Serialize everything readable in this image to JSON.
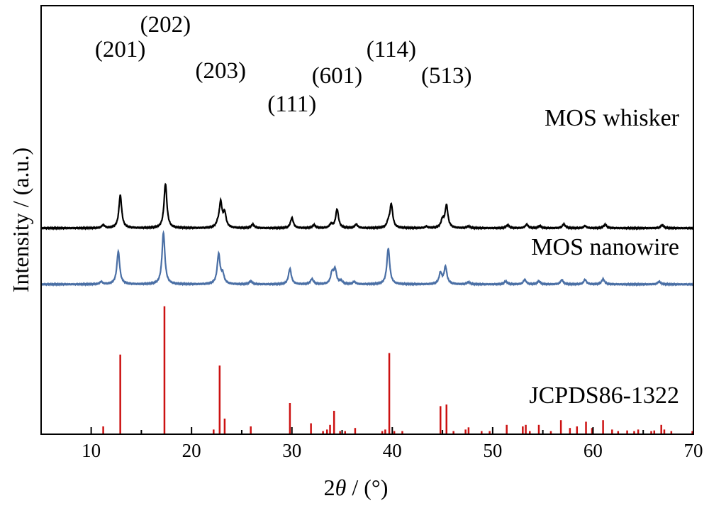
{
  "chart_data": {
    "type": "line",
    "xlabel": "2θ / (°)",
    "ylabel": "Intensity / (a.u.)",
    "xlim": [
      5,
      70
    ],
    "xticks": [
      10,
      20,
      30,
      40,
      50,
      60,
      70
    ],
    "grid": false,
    "legend": "none",
    "series": [
      {
        "name": "MOS whisker",
        "color": "#000000",
        "baseline": 6.6,
        "peaks": [
          [
            11.2,
            0.1
          ],
          [
            12.9,
            1.05
          ],
          [
            17.4,
            1.42
          ],
          [
            22.6,
            0.1
          ],
          [
            22.9,
            0.8
          ],
          [
            23.3,
            0.45
          ],
          [
            26.1,
            0.12
          ],
          [
            30.0,
            0.33
          ],
          [
            32.2,
            0.1
          ],
          [
            33.9,
            0.12
          ],
          [
            34.5,
            0.6
          ],
          [
            36.4,
            0.12
          ],
          [
            39.6,
            0.15
          ],
          [
            39.9,
            0.75
          ],
          [
            43.4,
            0.05
          ],
          [
            45.0,
            0.25
          ],
          [
            45.4,
            0.72
          ],
          [
            47.6,
            0.06
          ],
          [
            51.5,
            0.1
          ],
          [
            53.4,
            0.12
          ],
          [
            54.7,
            0.07
          ],
          [
            57.1,
            0.13
          ],
          [
            59.2,
            0.07
          ],
          [
            61.2,
            0.12
          ],
          [
            66.9,
            0.1
          ]
        ],
        "peak_labels": [
          {
            "text": "(201)",
            "x": 12.9
          },
          {
            "text": "(202)",
            "x": 17.4
          },
          {
            "text": "(203)",
            "x": 22.9
          },
          {
            "text": "(111)",
            "x": 30.0
          },
          {
            "text": "(601)",
            "x": 34.5
          },
          {
            "text": "(114)",
            "x": 39.9
          },
          {
            "text": "(513)",
            "x": 45.4
          }
        ]
      },
      {
        "name": "MOS nanowire",
        "color": "#4a6fa5",
        "baseline": 4.8,
        "peaks": [
          [
            11.0,
            0.08
          ],
          [
            12.7,
            1.05
          ],
          [
            17.2,
            1.65
          ],
          [
            22.7,
            0.95
          ],
          [
            23.1,
            0.3
          ],
          [
            25.9,
            0.1
          ],
          [
            29.8,
            0.5
          ],
          [
            32.0,
            0.17
          ],
          [
            34.0,
            0.35
          ],
          [
            34.3,
            0.45
          ],
          [
            34.9,
            0.1
          ],
          [
            36.2,
            0.08
          ],
          [
            39.6,
            1.15
          ],
          [
            44.8,
            0.35
          ],
          [
            45.3,
            0.55
          ],
          [
            47.6,
            0.07
          ],
          [
            51.3,
            0.1
          ],
          [
            53.2,
            0.15
          ],
          [
            54.6,
            0.1
          ],
          [
            56.9,
            0.14
          ],
          [
            59.2,
            0.15
          ],
          [
            61.0,
            0.17
          ],
          [
            66.6,
            0.09
          ]
        ]
      },
      {
        "name": "JCPDS86-1322",
        "type": "bar",
        "color": "#cc1111",
        "baseline": 0,
        "sticks": [
          [
            11.2,
            0.25
          ],
          [
            12.9,
            2.55
          ],
          [
            17.3,
            4.1
          ],
          [
            22.2,
            0.15
          ],
          [
            22.8,
            2.2
          ],
          [
            23.3,
            0.5
          ],
          [
            25.9,
            0.25
          ],
          [
            29.8,
            1.0
          ],
          [
            31.9,
            0.35
          ],
          [
            33.1,
            0.1
          ],
          [
            33.5,
            0.15
          ],
          [
            33.8,
            0.3
          ],
          [
            34.2,
            0.75
          ],
          [
            34.8,
            0.1
          ],
          [
            35.3,
            0.1
          ],
          [
            36.3,
            0.2
          ],
          [
            39.0,
            0.1
          ],
          [
            39.3,
            0.15
          ],
          [
            39.7,
            2.6
          ],
          [
            40.2,
            0.1
          ],
          [
            41.0,
            0.1
          ],
          [
            44.8,
            0.9
          ],
          [
            45.4,
            0.95
          ],
          [
            46.1,
            0.1
          ],
          [
            47.3,
            0.15
          ],
          [
            47.6,
            0.22
          ],
          [
            48.9,
            0.1
          ],
          [
            49.7,
            0.1
          ],
          [
            51.4,
            0.3
          ],
          [
            53.0,
            0.25
          ],
          [
            53.3,
            0.3
          ],
          [
            53.7,
            0.1
          ],
          [
            54.6,
            0.3
          ],
          [
            55.8,
            0.1
          ],
          [
            56.8,
            0.45
          ],
          [
            57.7,
            0.2
          ],
          [
            58.4,
            0.25
          ],
          [
            59.3,
            0.4
          ],
          [
            59.9,
            0.2
          ],
          [
            61.0,
            0.45
          ],
          [
            61.9,
            0.15
          ],
          [
            62.5,
            0.1
          ],
          [
            63.4,
            0.12
          ],
          [
            64.1,
            0.1
          ],
          [
            64.5,
            0.15
          ],
          [
            65.8,
            0.1
          ],
          [
            66.1,
            0.12
          ],
          [
            66.8,
            0.3
          ],
          [
            67.1,
            0.15
          ],
          [
            67.8,
            0.1
          ],
          [
            69.9,
            0.1
          ]
        ]
      }
    ]
  }
}
